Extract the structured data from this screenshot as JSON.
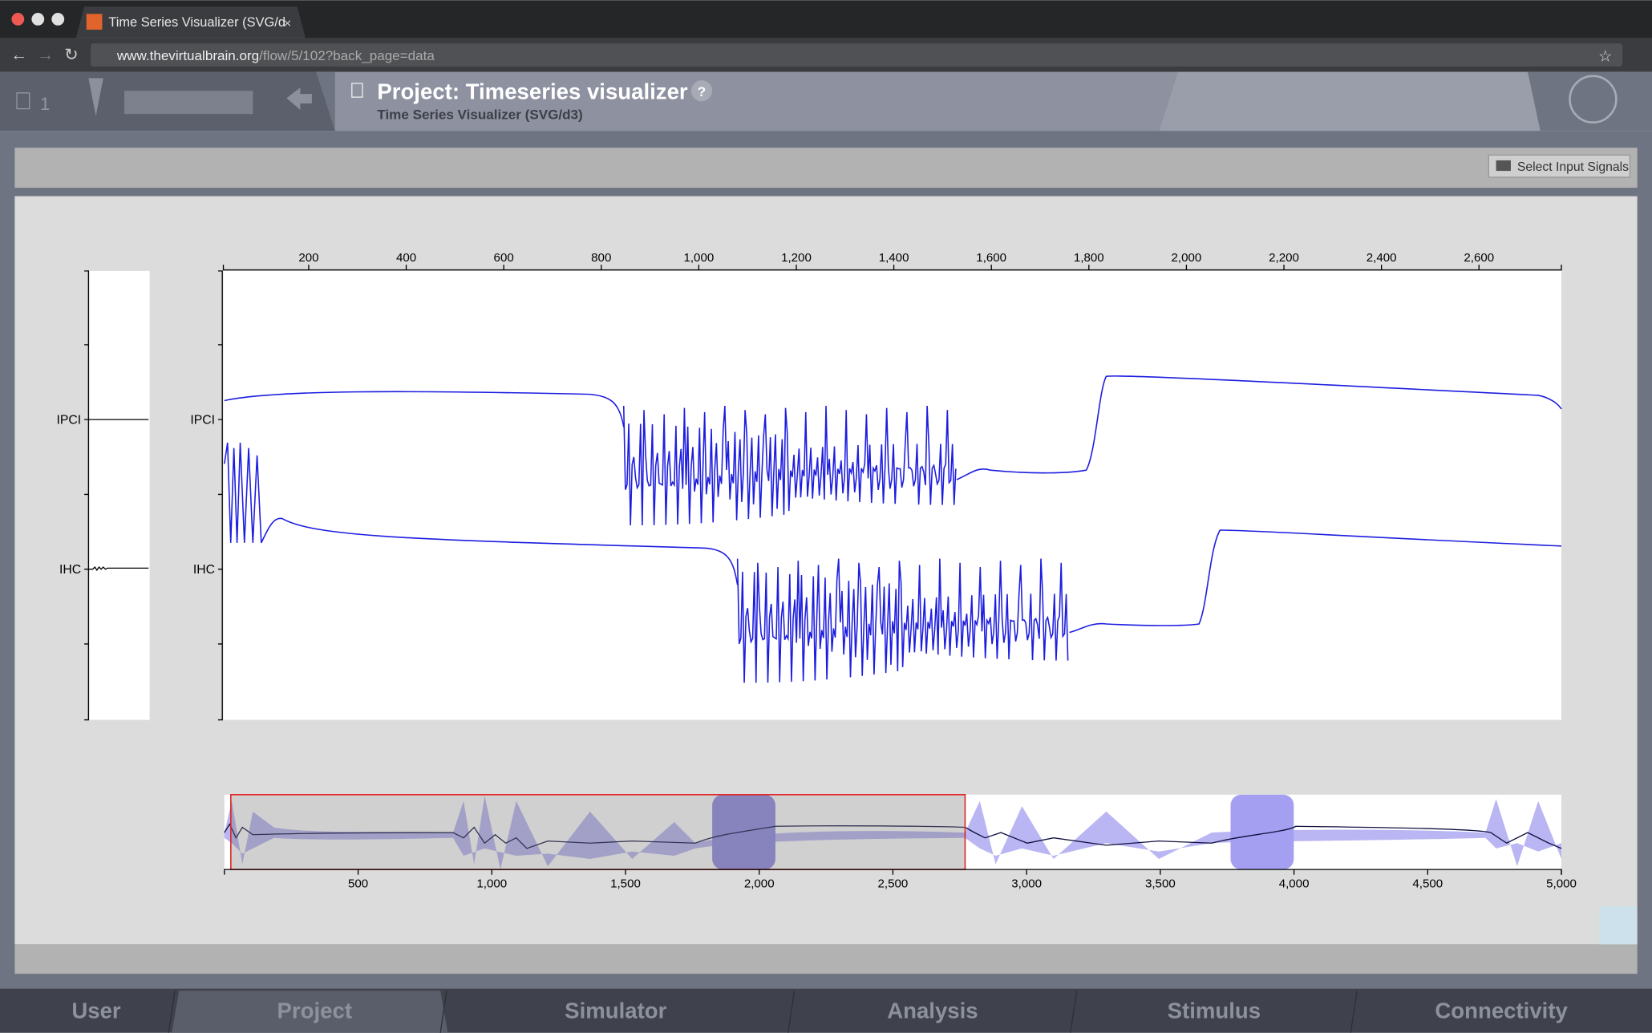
{
  "browser": {
    "tab_title": "Time Series Visualizer (SVG/d",
    "url_host": "www.thevirtualbrain.org",
    "url_path": "/flow/5/102?back_page=data"
  },
  "header": {
    "project_count": "1",
    "title": "Project: Timeseries visualizer",
    "subtitle": "Time Series Visualizer (SVG/d3)",
    "help": "?"
  },
  "toolbar": {
    "select_button": "Select Input Signals"
  },
  "main_chart": {
    "channels": [
      "IPCI",
      "IHC"
    ],
    "xlim": [
      25,
      2769
    ],
    "xticks": [
      200,
      400,
      600,
      800,
      {
        "value": 1000,
        "label": "1,000"
      },
      {
        "value": 1200,
        "label": "1,200"
      },
      {
        "value": 1400,
        "label": "1,400"
      },
      {
        "value": 1600,
        "label": "1,600"
      },
      {
        "value": 1800,
        "label": "1,800"
      },
      {
        "value": 2000,
        "label": "2,000"
      },
      {
        "value": 2200,
        "label": "2,200"
      },
      {
        "value": 2400,
        "label": "2,400"
      },
      {
        "value": 2600,
        "label": "2,600"
      }
    ]
  },
  "context_chart": {
    "xlim": [
      0,
      5000
    ],
    "brush": [
      24,
      2770
    ],
    "xticks": [
      500,
      {
        "value": 1000,
        "label": "1,000"
      },
      {
        "value": 1500,
        "label": "1,500"
      },
      {
        "value": 2000,
        "label": "2,000"
      },
      {
        "value": 2500,
        "label": "2,500"
      },
      {
        "value": 3000,
        "label": "3,000"
      },
      {
        "value": 3500,
        "label": "3,500"
      },
      {
        "value": 4000,
        "label": "4,000"
      },
      {
        "value": 4500,
        "label": "4,500"
      },
      {
        "value": 5000,
        "label": "5,000"
      }
    ]
  },
  "nav": {
    "items": [
      "User",
      "Project",
      "Simulator",
      "Analysis",
      "Stimulus",
      "Connectivity"
    ]
  }
}
